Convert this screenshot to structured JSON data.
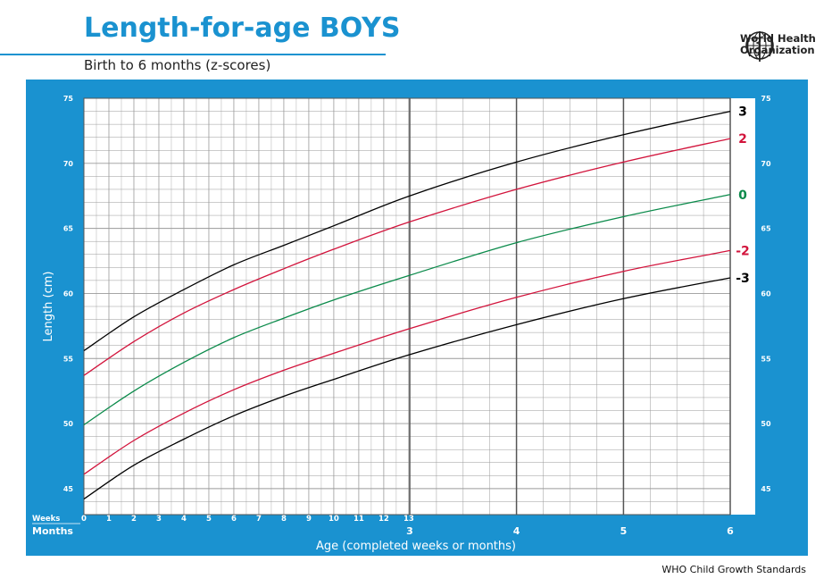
{
  "header": {
    "title": "Length-for-age BOYS",
    "subtitle": "Birth to 6 months (z-scores)",
    "org_line1": "World Health",
    "org_line2": "Organization",
    "footer": "WHO Child Growth Standards"
  },
  "colors": {
    "frame": "#1a92d0",
    "plot_bg": "#ffffff",
    "grid": "#9a9a9a",
    "z3": "#000000",
    "z2": "#d2143c",
    "z0": "#0a8a4a"
  },
  "chart_data": {
    "type": "line",
    "title": "Length-for-age BOYS",
    "subtitle": "Birth to 6 months (z-scores)",
    "xlabel": "Age (completed weeks or months)",
    "ylabel": "Length (cm)",
    "x_unit": "weeks",
    "xlim": [
      0,
      26.07
    ],
    "ylim": [
      43,
      75
    ],
    "y_ticks": [
      45,
      50,
      55,
      60,
      65,
      70,
      75
    ],
    "week_ticks": [
      0,
      1,
      2,
      3,
      4,
      5,
      6,
      7,
      8,
      9,
      10,
      11,
      12,
      13
    ],
    "month_ticks": [
      {
        "label": "3",
        "weeks": 13.04
      },
      {
        "label": "4",
        "weeks": 17.38
      },
      {
        "label": "5",
        "weeks": 21.73
      },
      {
        "label": "6",
        "weeks": 26.07
      }
    ],
    "row_labels": {
      "weeks": "Weeks",
      "months": "Months"
    },
    "grid": true,
    "x": [
      0,
      2,
      4,
      6,
      8,
      10,
      13.04,
      17.38,
      21.73,
      26.07
    ],
    "series": [
      {
        "name": "3",
        "color_key": "z3",
        "values": [
          55.6,
          58.2,
          60.3,
          62.2,
          63.7,
          65.2,
          67.5,
          70.1,
          72.2,
          74.0
        ]
      },
      {
        "name": "2",
        "color_key": "z2",
        "values": [
          53.7,
          56.3,
          58.5,
          60.3,
          61.9,
          63.4,
          65.5,
          68.0,
          70.1,
          71.9
        ]
      },
      {
        "name": "0",
        "color_key": "z0",
        "values": [
          49.9,
          52.5,
          54.7,
          56.6,
          58.1,
          59.5,
          61.4,
          63.9,
          65.9,
          67.6
        ]
      },
      {
        "name": "-2",
        "color_key": "z2",
        "values": [
          46.1,
          48.7,
          50.8,
          52.6,
          54.1,
          55.4,
          57.3,
          59.7,
          61.7,
          63.3
        ]
      },
      {
        "name": "-3",
        "color_key": "z3",
        "values": [
          44.2,
          46.8,
          48.8,
          50.6,
          52.1,
          53.4,
          55.3,
          57.6,
          59.6,
          61.2
        ]
      }
    ]
  }
}
